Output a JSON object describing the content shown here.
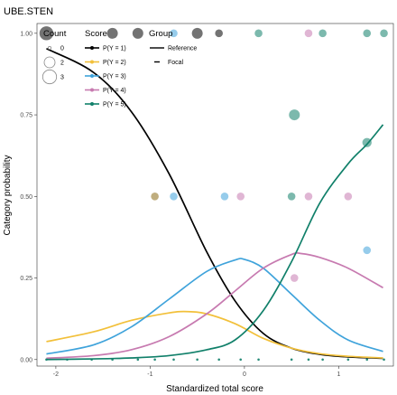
{
  "chart_data": {
    "type": "line",
    "title": "UBE.STEN",
    "xlabel": "Standardized total score",
    "ylabel": "Category probability",
    "xlim": [
      -2.2,
      1.58
    ],
    "ylim": [
      -0.02,
      1.03
    ],
    "x_ticks": [
      -2,
      -1,
      0,
      1
    ],
    "x_tick_labels": [
      "-2",
      "-1",
      "0",
      "1"
    ],
    "y_ticks": [
      0,
      0.25,
      0.5,
      0.75,
      1
    ],
    "y_tick_labels": [
      "0.00",
      "0.25",
      "0.50",
      "0.75",
      "1.00"
    ],
    "grid": false,
    "legends": {
      "count": {
        "title": "Count",
        "items": [
          {
            "label": "0",
            "size": 0
          },
          {
            "label": "2",
            "size": 2
          },
          {
            "label": "3",
            "size": 3
          }
        ]
      },
      "score": {
        "title": "Score",
        "items": [
          {
            "label": "P(Y = 1)",
            "color": "#000000"
          },
          {
            "label": "P(Y = 2)",
            "color": "#F2C03A"
          },
          {
            "label": "P(Y = 3)",
            "color": "#3FA3DB"
          },
          {
            "label": "P(Y = 4)",
            "color": "#C77AB0"
          },
          {
            "label": "P(Y = 5)",
            "color": "#11806A"
          }
        ]
      },
      "group": {
        "title": "Group",
        "items": [
          {
            "label": "Reference",
            "style": "solid"
          },
          {
            "label": "Focal",
            "style": "dashed"
          }
        ]
      }
    },
    "series": [
      {
        "color": "#000000",
        "points": [
          [
            -2.1,
            0.953
          ],
          [
            -1.6,
            0.88
          ],
          [
            -1.2,
            0.76
          ],
          [
            -0.8,
            0.57
          ],
          [
            -0.4,
            0.33
          ],
          [
            -0.1,
            0.18
          ],
          [
            0.2,
            0.08
          ],
          [
            0.5,
            0.035
          ],
          [
            0.8,
            0.016
          ],
          [
            1.1,
            0.008
          ],
          [
            1.47,
            0.004
          ]
        ]
      },
      {
        "color": "#F2C03A",
        "points": [
          [
            -2.1,
            0.055
          ],
          [
            -1.6,
            0.085
          ],
          [
            -1.2,
            0.12
          ],
          [
            -0.8,
            0.143
          ],
          [
            -0.6,
            0.147
          ],
          [
            -0.4,
            0.14
          ],
          [
            -0.1,
            0.11
          ],
          [
            0.2,
            0.065
          ],
          [
            0.5,
            0.035
          ],
          [
            0.8,
            0.018
          ],
          [
            1.1,
            0.01
          ],
          [
            1.47,
            0.005
          ]
        ]
      },
      {
        "color": "#3FA3DB",
        "points": [
          [
            -2.1,
            0.017
          ],
          [
            -1.6,
            0.045
          ],
          [
            -1.2,
            0.1
          ],
          [
            -0.8,
            0.185
          ],
          [
            -0.4,
            0.27
          ],
          [
            -0.1,
            0.305
          ],
          [
            0.0,
            0.307
          ],
          [
            0.2,
            0.28
          ],
          [
            0.5,
            0.2
          ],
          [
            0.8,
            0.12
          ],
          [
            1.1,
            0.06
          ],
          [
            1.47,
            0.025
          ]
        ]
      },
      {
        "color": "#C77AB0",
        "points": [
          [
            -2.1,
            0.004
          ],
          [
            -1.6,
            0.012
          ],
          [
            -1.2,
            0.03
          ],
          [
            -0.8,
            0.07
          ],
          [
            -0.4,
            0.14
          ],
          [
            -0.1,
            0.21
          ],
          [
            0.2,
            0.28
          ],
          [
            0.5,
            0.322
          ],
          [
            0.6,
            0.325
          ],
          [
            0.8,
            0.313
          ],
          [
            1.1,
            0.28
          ],
          [
            1.47,
            0.22
          ]
        ]
      },
      {
        "color": "#11806A",
        "points": [
          [
            -2.1,
            0.0
          ],
          [
            -1.6,
            0.002
          ],
          [
            -1.2,
            0.005
          ],
          [
            -0.8,
            0.012
          ],
          [
            -0.4,
            0.03
          ],
          [
            -0.1,
            0.06
          ],
          [
            0.2,
            0.15
          ],
          [
            0.5,
            0.3
          ],
          [
            0.8,
            0.48
          ],
          [
            1.1,
            0.6
          ],
          [
            1.3,
            0.66
          ],
          [
            1.47,
            0.72
          ]
        ]
      }
    ],
    "points": [
      {
        "x": -2.1,
        "y": 1.0,
        "color": "#000000",
        "size": 3
      },
      {
        "x": -1.4,
        "y": 1.0,
        "color": "#000000",
        "size": 2
      },
      {
        "x": -1.13,
        "y": 1.0,
        "color": "#000000",
        "size": 2
      },
      {
        "x": -0.75,
        "y": 1.0,
        "color": "#3FA3DB",
        "size": 1
      },
      {
        "x": -0.5,
        "y": 1.0,
        "color": "#000000",
        "size": 2
      },
      {
        "x": -0.27,
        "y": 1.0,
        "color": "#000000",
        "size": 1
      },
      {
        "x": 0.15,
        "y": 1.0,
        "color": "#11806A",
        "size": 1
      },
      {
        "x": 0.68,
        "y": 1.0,
        "color": "#C77AB0",
        "size": 1
      },
      {
        "x": 0.83,
        "y": 1.0,
        "color": "#11806A",
        "size": 1
      },
      {
        "x": 1.3,
        "y": 1.0,
        "color": "#11806A",
        "size": 1
      },
      {
        "x": 1.48,
        "y": 1.0,
        "color": "#11806A",
        "size": 1
      },
      {
        "x": -0.95,
        "y": 0.5,
        "color": "#8B6914",
        "size": 1
      },
      {
        "x": -0.75,
        "y": 0.5,
        "color": "#3FA3DB",
        "size": 1
      },
      {
        "x": -0.21,
        "y": 0.5,
        "color": "#3FA3DB",
        "size": 1
      },
      {
        "x": -0.04,
        "y": 0.5,
        "color": "#C77AB0",
        "size": 1
      },
      {
        "x": 0.5,
        "y": 0.5,
        "color": "#11806A",
        "size": 1
      },
      {
        "x": 0.68,
        "y": 0.5,
        "color": "#C77AB0",
        "size": 1
      },
      {
        "x": 1.1,
        "y": 0.5,
        "color": "#C77AB0",
        "size": 1
      },
      {
        "x": 0.53,
        "y": 0.75,
        "color": "#11806A",
        "size": 2
      },
      {
        "x": 1.3,
        "y": 0.665,
        "color": "#11806A",
        "size": 1.5
      },
      {
        "x": 1.3,
        "y": 0.335,
        "color": "#3FA3DB",
        "size": 1
      },
      {
        "x": 0.53,
        "y": 0.25,
        "color": "#C77AB0",
        "size": 1
      },
      {
        "x": -2.1,
        "y": 0.0,
        "color": "#11806A",
        "size": 0
      },
      {
        "x": -1.88,
        "y": 0.0,
        "color": "#11806A",
        "size": 0
      },
      {
        "x": -1.62,
        "y": 0.0,
        "color": "#11806A",
        "size": 0
      },
      {
        "x": -1.4,
        "y": 0.0,
        "color": "#11806A",
        "size": 0
      },
      {
        "x": -1.13,
        "y": 0.0,
        "color": "#11806A",
        "size": 0
      },
      {
        "x": -0.95,
        "y": 0.0,
        "color": "#11806A",
        "size": 0
      },
      {
        "x": -0.75,
        "y": 0.0,
        "color": "#11806A",
        "size": 0
      },
      {
        "x": -0.5,
        "y": 0.0,
        "color": "#11806A",
        "size": 0
      },
      {
        "x": -0.27,
        "y": 0.0,
        "color": "#11806A",
        "size": 0
      },
      {
        "x": -0.04,
        "y": 0.0,
        "color": "#11806A",
        "size": 0
      },
      {
        "x": 0.15,
        "y": 0.0,
        "color": "#11806A",
        "size": 0
      },
      {
        "x": 0.5,
        "y": 0.0,
        "color": "#11806A",
        "size": 0
      },
      {
        "x": 0.68,
        "y": 0.0,
        "color": "#11806A",
        "size": 0
      },
      {
        "x": 0.83,
        "y": 0.0,
        "color": "#11806A",
        "size": 0
      },
      {
        "x": 1.1,
        "y": 0.0,
        "color": "#11806A",
        "size": 0
      },
      {
        "x": 1.3,
        "y": 0.0,
        "color": "#11806A",
        "size": 0
      },
      {
        "x": 1.48,
        "y": 0.0,
        "color": "#11806A",
        "size": 0
      }
    ]
  }
}
